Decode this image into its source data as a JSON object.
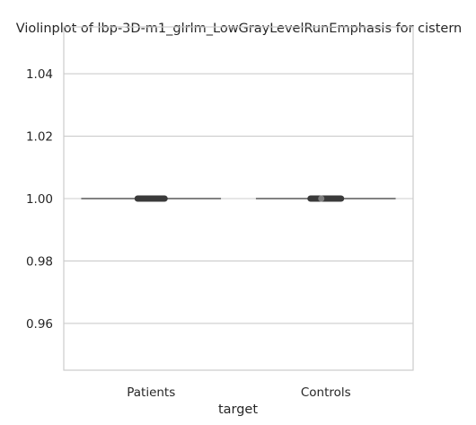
{
  "chart_data": {
    "type": "violin",
    "title": "Violinplot of lbp-3D-m1_glrlm_LowGrayLevelRunEmphasis for cistern",
    "xlabel": "target",
    "ylabel": "",
    "categories": [
      "Patients",
      "Controls"
    ],
    "ylim": [
      0.945,
      1.055
    ],
    "yticks": [
      0.96,
      0.98,
      1.0,
      1.02,
      1.04
    ],
    "ytick_labels": [
      "0.96",
      "0.98",
      "1.00",
      "1.02",
      "1.04"
    ],
    "grid": true,
    "violins": [
      {
        "category": "Patients",
        "value": 1.0,
        "iqr": [
          1.0,
          1.0
        ],
        "whisker": [
          1.0,
          1.0
        ],
        "median": 1.0
      },
      {
        "category": "Controls",
        "value": 1.0,
        "iqr": [
          1.0,
          1.0
        ],
        "whisker": [
          1.0,
          1.0
        ],
        "median": 1.0
      }
    ],
    "colors": {
      "violin_edge": "#595959",
      "box": "#3a3a3a",
      "grid": "#cccccc",
      "frame": "#cccccc"
    }
  }
}
